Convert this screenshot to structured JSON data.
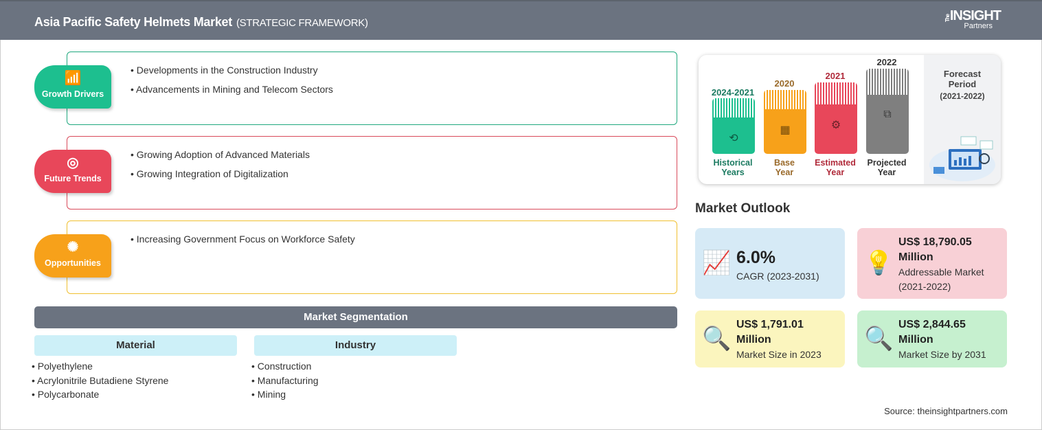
{
  "header": {
    "title": "Asia Pacific Safety Helmets Market",
    "subtitle": "(STRATEGIC FRAMEWORK)",
    "logo_the": "The",
    "logo_main": "INSIGHT",
    "logo_sub": "Partners"
  },
  "sections": [
    {
      "label": "Growth Drivers",
      "icon": "growth-chart-icon",
      "color": "#1dbf8f",
      "items": [
        "Developments in the Construction Industry",
        "Advancements in Mining and Telecom Sectors"
      ]
    },
    {
      "label": "Future Trends",
      "icon": "target-icon",
      "color": "#e8475a",
      "items": [
        "Growing Adoption of Advanced Materials",
        "Growing Integration of Digitalization"
      ]
    },
    {
      "label": "Opportunities",
      "icon": "lightbulb-hand-icon",
      "color": "#f7a11a",
      "items": [
        "Increasing Government Focus on Workforce Safety"
      ]
    }
  ],
  "segmentation": {
    "title": "Market Segmentation",
    "categories": [
      {
        "title": "Material",
        "items": [
          "Polyethylene",
          "Acrylonitrile Butadiene Styrene",
          "Polycarbonate"
        ]
      },
      {
        "title": "Industry",
        "items": [
          "Construction",
          "Manufacturing",
          "Mining"
        ]
      }
    ]
  },
  "timeline": {
    "bars": [
      {
        "year": "2024-2021",
        "label1": "Historical",
        "label2": "Years",
        "color": "#1dbf8f",
        "text_color": "#1a7a60",
        "icon": "history-icon"
      },
      {
        "year": "2020",
        "label1": "Base",
        "label2": "Year",
        "color": "#f7a11a",
        "text_color": "#9a6a2a",
        "icon": "calendar-icon"
      },
      {
        "year": "2021",
        "label1": "Estimated",
        "label2": "Year",
        "color": "#e8475a",
        "text_color": "#b02a3a",
        "icon": "estimate-icon"
      },
      {
        "year": "2022",
        "label1": "Projected",
        "label2": "Year",
        "color": "#7f7f7f",
        "text_color": "#333333",
        "icon": "presentation-icon"
      }
    ],
    "forecast_title": "Forecast Period",
    "forecast_range": "(2021-2022)"
  },
  "outlook": {
    "title": "Market Outlook",
    "cards": [
      {
        "value": "6.0%",
        "desc": "CAGR (2023-2031)",
        "color": "#d6eaf6",
        "icon": "growth-chart-icon"
      },
      {
        "value": "US$ 18,790.05 Million",
        "desc": "Addressable Market (2021-2022)",
        "color": "#f8d0d6",
        "icon": "dollar-bulb-icon"
      },
      {
        "value": "US$ 1,791.01 Million",
        "desc": "Market Size in 2023",
        "color": "#fbf5be",
        "icon": "market-search-icon"
      },
      {
        "value": "US$ 2,844.65 Million",
        "desc": "Market Size by 2031",
        "color": "#c6f0cf",
        "icon": "market-search-icon"
      }
    ]
  },
  "source": "Source: theinsightpartners.com"
}
